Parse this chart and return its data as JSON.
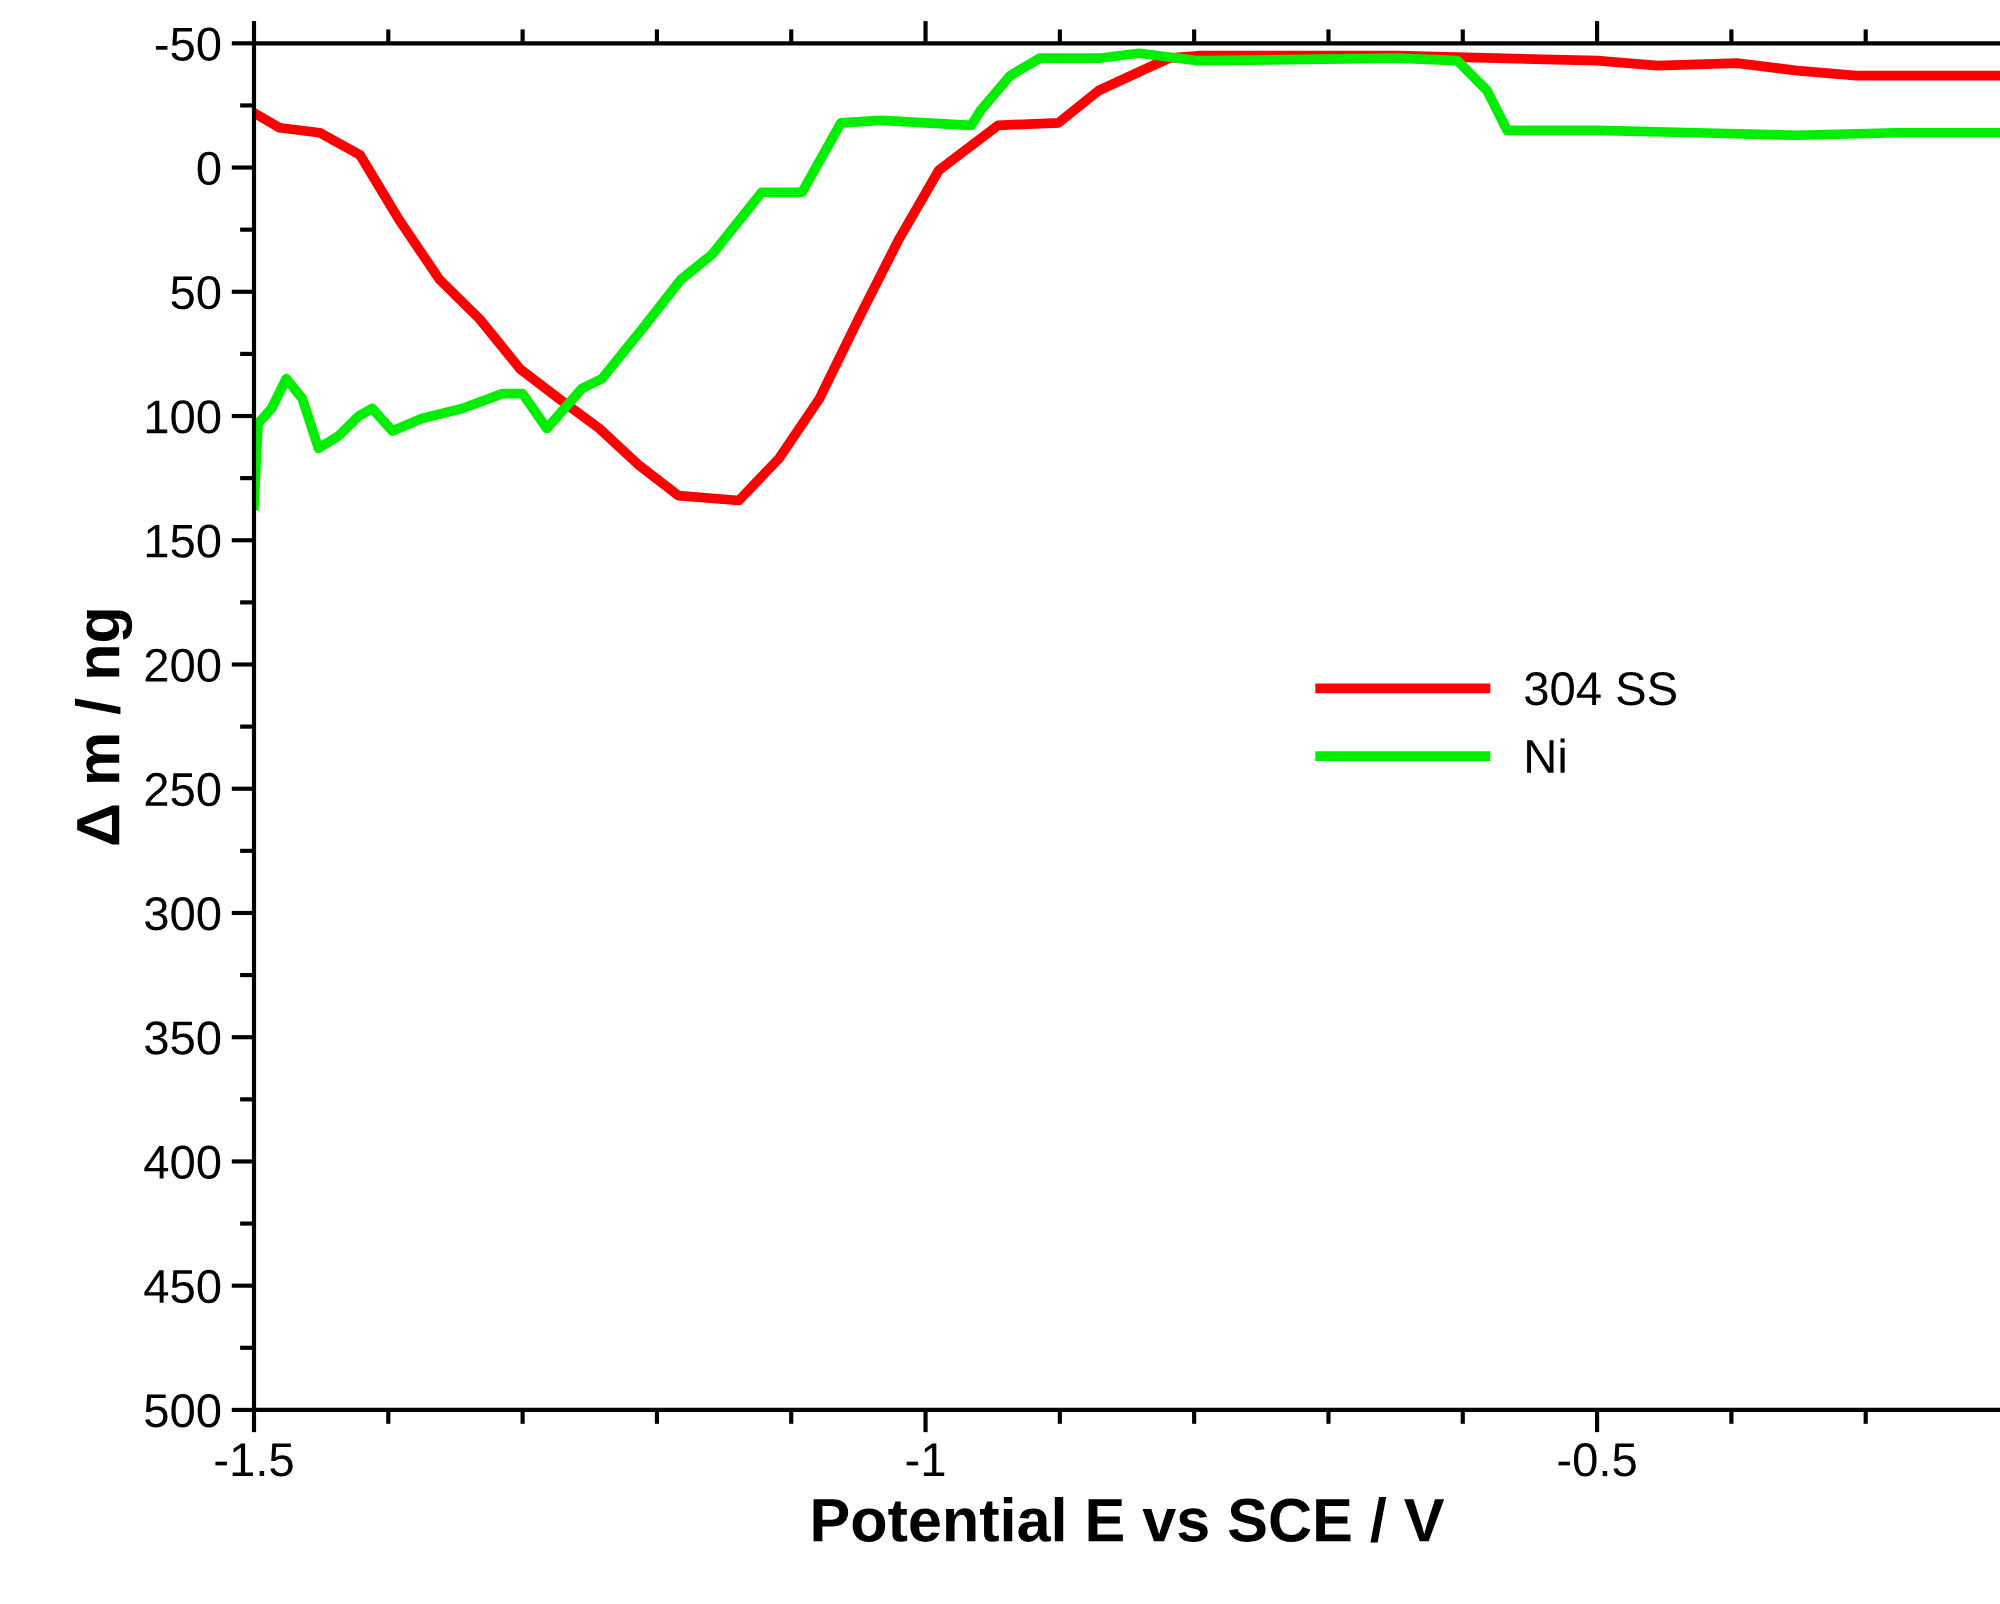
{
  "chart_data": {
    "type": "line",
    "xlabel": "Potential E vs SCE / V",
    "ylabel": "Δ m / ng",
    "xlim": [
      -1.5,
      -0.2
    ],
    "ylim": [
      500,
      -50
    ],
    "xticks": [
      -1.5,
      {
        "value": -1.4,
        "label": null
      },
      {
        "value": -1.3,
        "label": null
      },
      {
        "value": -1.2,
        "label": null
      },
      {
        "value": -1.1,
        "label": null
      },
      -1,
      {
        "value": -0.9,
        "label": null
      },
      {
        "value": -0.8,
        "label": null
      },
      {
        "value": -0.7,
        "label": null
      },
      {
        "value": -0.6,
        "label": null
      },
      -0.5,
      {
        "value": -0.4,
        "label": null
      },
      {
        "value": -0.3,
        "label": null
      }
    ],
    "yticks": [
      -50,
      {
        "value": -25,
        "label": null
      },
      0,
      {
        "value": 25,
        "label": null
      },
      50,
      {
        "value": 75,
        "label": null
      },
      100,
      {
        "value": 125,
        "label": null
      },
      150,
      {
        "value": 175,
        "label": null
      },
      200,
      {
        "value": 225,
        "label": null
      },
      250,
      {
        "value": 275,
        "label": null
      },
      300,
      {
        "value": 325,
        "label": null
      },
      350,
      {
        "value": 375,
        "label": null
      },
      400,
      {
        "value": 425,
        "label": null
      },
      450,
      {
        "value": 475,
        "label": null
      },
      500
    ],
    "grid": false,
    "legend": "right",
    "marker": "none",
    "line_style": "solid",
    "series": [
      {
        "name": "304 SS",
        "color": "#ff0000",
        "x": [
          -1.5,
          -1.481,
          -1.451,
          -1.421,
          -1.392,
          -1.362,
          -1.332,
          -1.302,
          -1.273,
          -1.243,
          -1.213,
          -1.184,
          -1.139,
          -1.109,
          -1.079,
          -1.05,
          -1.02,
          -0.99,
          -0.946,
          -0.901,
          -0.871,
          -0.819,
          -0.797,
          -0.649,
          -0.5,
          -0.455,
          -0.396,
          -0.351,
          -0.307,
          -0.203
        ],
        "values": [
          -22,
          -16,
          -14,
          -5,
          21,
          45,
          61,
          81,
          93,
          105,
          120,
          132,
          134,
          117,
          93,
          61,
          29,
          1,
          -17,
          -18,
          -31,
          -44,
          -45,
          -45,
          -43,
          -41,
          -42,
          -39,
          -37,
          -37
        ]
      },
      {
        "name": "Ni",
        "color": "#00ee00",
        "x": [
          -1.5,
          -1.497,
          -1.487,
          -1.476,
          -1.464,
          -1.452,
          -1.437,
          -1.422,
          -1.412,
          -1.397,
          -1.375,
          -1.345,
          -1.315,
          -1.3,
          -1.282,
          -1.256,
          -1.241,
          -1.211,
          -1.182,
          -1.159,
          -1.122,
          -1.092,
          -1.063,
          -1.033,
          -0.966,
          -0.959,
          -0.937,
          -0.915,
          -0.871,
          -0.841,
          -0.797,
          -0.649,
          -0.604,
          -0.582,
          -0.567,
          -0.5,
          -0.426,
          -0.351,
          -0.277,
          -0.203
        ],
        "values": [
          136,
          103,
          97,
          85,
          93,
          113,
          108,
          100,
          97,
          106,
          101,
          97,
          91,
          91,
          105,
          89,
          85,
          65,
          45,
          35,
          10,
          10,
          -18,
          -19,
          -17,
          -23,
          -37,
          -44,
          -44,
          -46,
          -43,
          -44,
          -43,
          -31,
          -15,
          -15,
          -14,
          -13,
          -14,
          -14
        ]
      }
    ]
  }
}
